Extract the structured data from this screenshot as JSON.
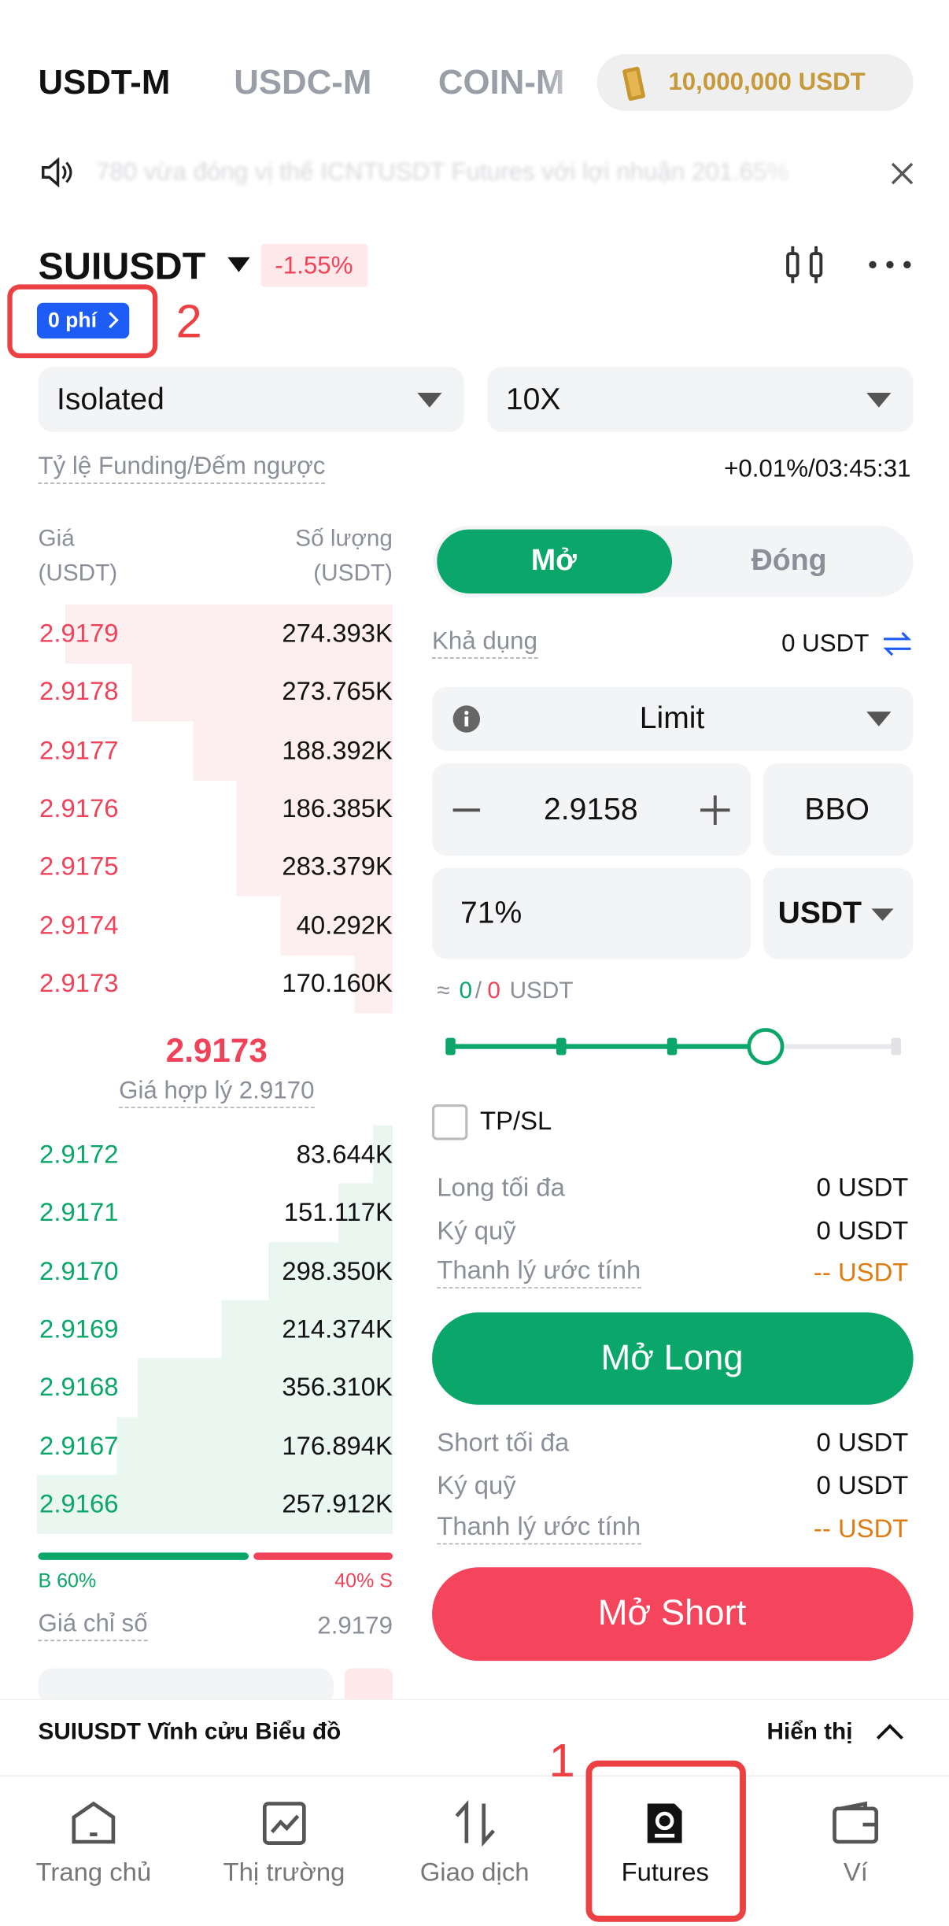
{
  "tabs": [
    "USDT-M",
    "USDC-M",
    "COIN-M"
  ],
  "balance": "10,000,000 USDT",
  "announcement": "780 vừa đóng vị thế ICNTUSDT Futures với lợi nhuận 201.65%",
  "symbol": "SUIUSDT",
  "change": "-1.55%",
  "fee_badge": "0 phí",
  "annotations": [
    "1",
    "2"
  ],
  "margin_mode": "Isolated",
  "leverage": "10X",
  "funding": {
    "label": "Tỷ lệ Funding/Đếm ngược",
    "value": "+0.01%/03:45:31"
  },
  "order_book": {
    "price_header": "Giá",
    "price_unit": "(USDT)",
    "qty_header": "Số lượng",
    "qty_unit": "(USDT)",
    "asks": [
      [
        "2.9179",
        "274.393K"
      ],
      [
        "2.9178",
        "273.765K"
      ],
      [
        "2.9177",
        "188.392K"
      ],
      [
        "2.9176",
        "186.385K"
      ],
      [
        "2.9175",
        "283.379K"
      ],
      [
        "2.9174",
        "40.292K"
      ],
      [
        "2.9173",
        "170.160K"
      ]
    ],
    "last_price": "2.9173",
    "fair_price": "Giá hợp lý 2.9170",
    "bids": [
      [
        "2.9172",
        "83.644K"
      ],
      [
        "2.9171",
        "151.117K"
      ],
      [
        "2.9170",
        "298.350K"
      ],
      [
        "2.9169",
        "214.374K"
      ],
      [
        "2.9168",
        "356.310K"
      ],
      [
        "2.9167",
        "176.894K"
      ],
      [
        "2.9166",
        "257.912K"
      ]
    ],
    "buy_ratio": "B 60%",
    "sell_ratio": "40% S",
    "index_label": "Giá chỉ số",
    "index_value": "2.9179"
  },
  "order_form": {
    "open": "Mở",
    "close": "Đóng",
    "available_label": "Khả dụng",
    "available_value": "0 USDT",
    "order_type": "Limit",
    "price": "2.9158",
    "bbo": "BBO",
    "amount": "71%",
    "amount_unit": "USDT",
    "estimate": [
      "≈",
      "0",
      "/",
      "0",
      "USDT"
    ],
    "tpsl": "TP/SL",
    "long_rows": [
      [
        "Long tối đa",
        "0 USDT"
      ],
      [
        "Ký quỹ",
        "0 USDT"
      ],
      [
        "Thanh lý ước tính",
        "-- USDT"
      ]
    ],
    "long_button": "Mở Long",
    "short_rows": [
      [
        "Short tối đa",
        "0 USDT"
      ],
      [
        "Ký quỹ",
        "0 USDT"
      ],
      [
        "Thanh lý ước tính",
        "-- USDT"
      ]
    ],
    "short_button": "Mở Short"
  },
  "chart_bar": {
    "title": "SUIUSDT Vĩnh cửu Biểu đồ",
    "toggle": "Hiển thị"
  },
  "nav": [
    "Trang chủ",
    "Thị trường",
    "Giao dịch",
    "Futures",
    "Ví"
  ]
}
